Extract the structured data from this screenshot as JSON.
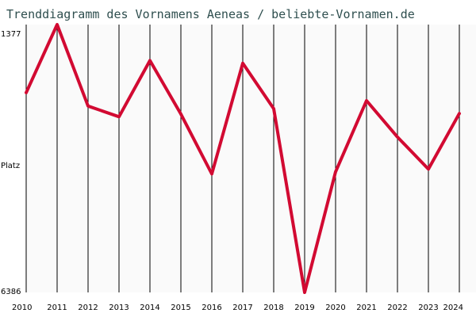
{
  "chart_data": {
    "type": "line",
    "title": "Trenddiagramm des Vornamens Aeneas / beliebte-Vornamen.de",
    "ylabel": "Platz",
    "xlabel": "",
    "y_tick_labels": [
      "1377",
      "6386"
    ],
    "ylim": [
      1377,
      6386
    ],
    "y_inverted": true,
    "grid": "vertical",
    "x": [
      2010,
      2011,
      2012,
      2013,
      2014,
      2015,
      2016,
      2017,
      2018,
      2019,
      2020,
      2021,
      2022,
      2023,
      2024
    ],
    "series": [
      {
        "values": [
          2650,
          1377,
          2900,
          3100,
          2050,
          3050,
          4170,
          2100,
          2950,
          6386,
          4130,
          2800,
          3480,
          4080,
          3040
        ]
      }
    ]
  },
  "colors": {
    "background": "#ffffff",
    "plot_background": "#fafafa",
    "line": "#d20a32",
    "grid": "#000000",
    "title": "#2f4f4f"
  }
}
